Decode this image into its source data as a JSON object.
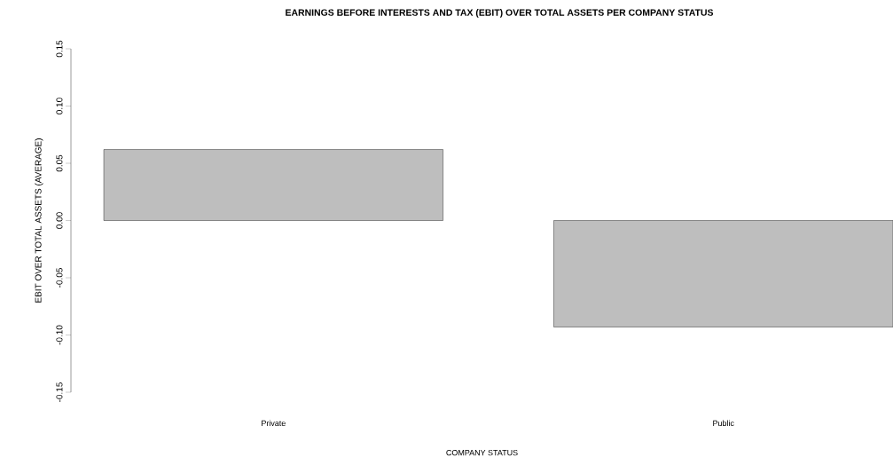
{
  "chart_data": {
    "type": "bar",
    "title": "EARNINGS BEFORE INTERESTS AND TAX (EBIT) OVER TOTAL ASSETS PER COMPANY STATUS",
    "xlabel": "COMPANY STATUS",
    "ylabel": "EBIT OVER TOTAL ASSETS (AVERAGE)",
    "categories": [
      "Private",
      "Public"
    ],
    "values": [
      0.062,
      -0.093
    ],
    "color": "#bebebe",
    "ylim": [
      -0.15,
      0.15
    ],
    "yticks": [
      {
        "value": -0.15,
        "label": "-0.15"
      },
      {
        "value": -0.1,
        "label": "-0.10"
      },
      {
        "value": -0.05,
        "label": "-0.05"
      },
      {
        "value": 0,
        "label": "0.00"
      },
      {
        "value": 0.05,
        "label": "0.05"
      },
      {
        "value": 0.1,
        "label": "0.10"
      },
      {
        "value": 0.15,
        "label": "0.15"
      }
    ]
  }
}
